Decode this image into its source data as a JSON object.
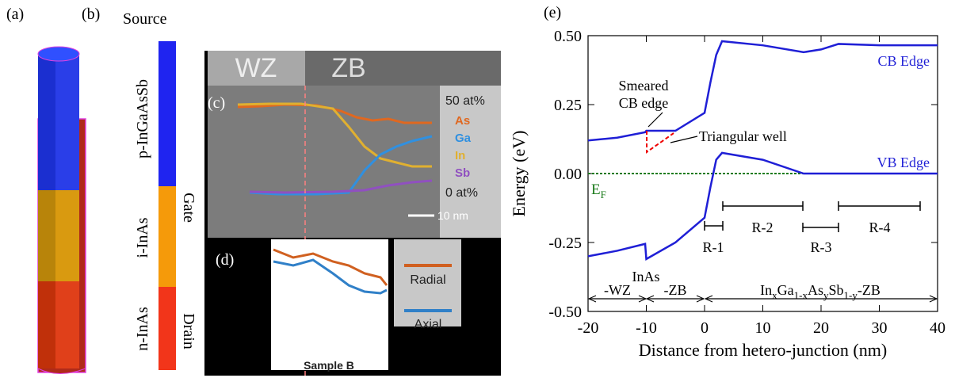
{
  "panels": {
    "a": "(a)",
    "b": "(b)",
    "c": "(c)",
    "d": "(d)",
    "e": "(e)"
  },
  "device": {
    "source": "Source",
    "p_layer": "p-InGaAsSb",
    "i_layer": "i-InAs",
    "n_layer": "n-InAs",
    "gate": "Gate",
    "drain": "Drain"
  },
  "tem": {
    "wz": "WZ",
    "zb": "ZB",
    "top": "50 at%",
    "elements": [
      "As",
      "Ga",
      "In",
      "Sb"
    ],
    "bottom": "0 at%",
    "scale": "10 nm"
  },
  "profile": {
    "legend": [
      "Radial",
      "Axial"
    ],
    "sample": "Sample B"
  },
  "chart_data": {
    "type": "line",
    "xlabel": "Distance from hetero-junction (nm)",
    "ylabel": "Energy (eV)",
    "x": [
      -20,
      -15,
      -10.2,
      -10,
      -5,
      0,
      1,
      2,
      3,
      10,
      17,
      20,
      23,
      30,
      40
    ],
    "series": [
      {
        "name": "CB Edge",
        "color": "#1f1fd6",
        "values": [
          0.12,
          0.13,
          0.15,
          0.155,
          0.155,
          0.22,
          0.33,
          0.43,
          0.48,
          0.465,
          0.44,
          0.45,
          0.47,
          0.465,
          0.465
        ]
      },
      {
        "name": "VB Edge",
        "color": "#1f1fd6",
        "values": [
          -0.3,
          -0.28,
          -0.255,
          -0.31,
          -0.25,
          -0.16,
          -0.05,
          0.05,
          0.075,
          0.05,
          0,
          0,
          0,
          0,
          0
        ]
      }
    ],
    "fermi_level": 0,
    "fermi_color": "#1a7a1a",
    "ef_label": [
      "E",
      "F"
    ],
    "xlim": [
      -20,
      40
    ],
    "xticks": [
      -20,
      -10,
      0,
      10,
      20,
      30,
      40
    ],
    "ylim": [
      -0.5,
      0.5
    ],
    "yticks": [
      {
        "value": -0.5,
        "label": "-0.50"
      },
      {
        "value": -0.25,
        "label": "-0.25"
      },
      {
        "value": 0,
        "label": "0.00"
      },
      {
        "value": 0.25,
        "label": "0.25"
      },
      {
        "value": 0.5,
        "label": "0.50"
      }
    ],
    "annotations": {
      "smeared": [
        "Smeared",
        "CB edge"
      ],
      "well": "Triangular well",
      "regions": [
        "R-1",
        "R-2",
        "R-3",
        "R-4"
      ],
      "inas": "InAs",
      "wz": "-WZ",
      "zb": "-ZB",
      "alloy": [
        "In",
        "x",
        "Ga",
        "1-x",
        "As",
        "y",
        "Sb",
        "1-y",
        "-ZB"
      ]
    }
  }
}
